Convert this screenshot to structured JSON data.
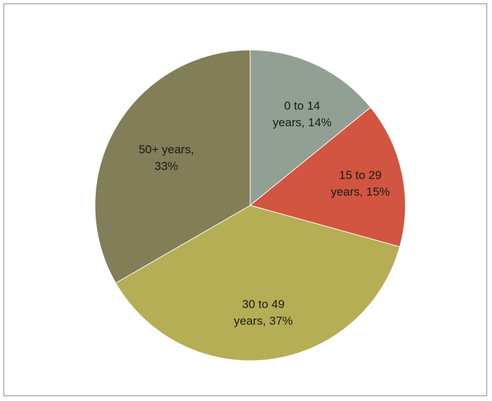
{
  "chart_data": {
    "type": "pie",
    "title": "",
    "start_angle_deg": 0,
    "direction": "clockwise",
    "legend": "none",
    "slices": [
      {
        "category": "0 to 14 years",
        "value": 14,
        "label_lines": [
          "0 to 14",
          "years, 14%"
        ],
        "color": "#929f93"
      },
      {
        "category": "15 to 29 years",
        "value": 15,
        "label_lines": [
          "15 to 29",
          "years, 15%"
        ],
        "color": "#d15540"
      },
      {
        "category": "30 to 49 years",
        "value": 37,
        "label_lines": [
          "30 to 49",
          "years, 37%"
        ],
        "color": "#b6ae55"
      },
      {
        "category": "50+ years",
        "value": 33,
        "label_lines": [
          "50+ years,",
          "33%"
        ],
        "color": "#817e58"
      }
    ]
  }
}
